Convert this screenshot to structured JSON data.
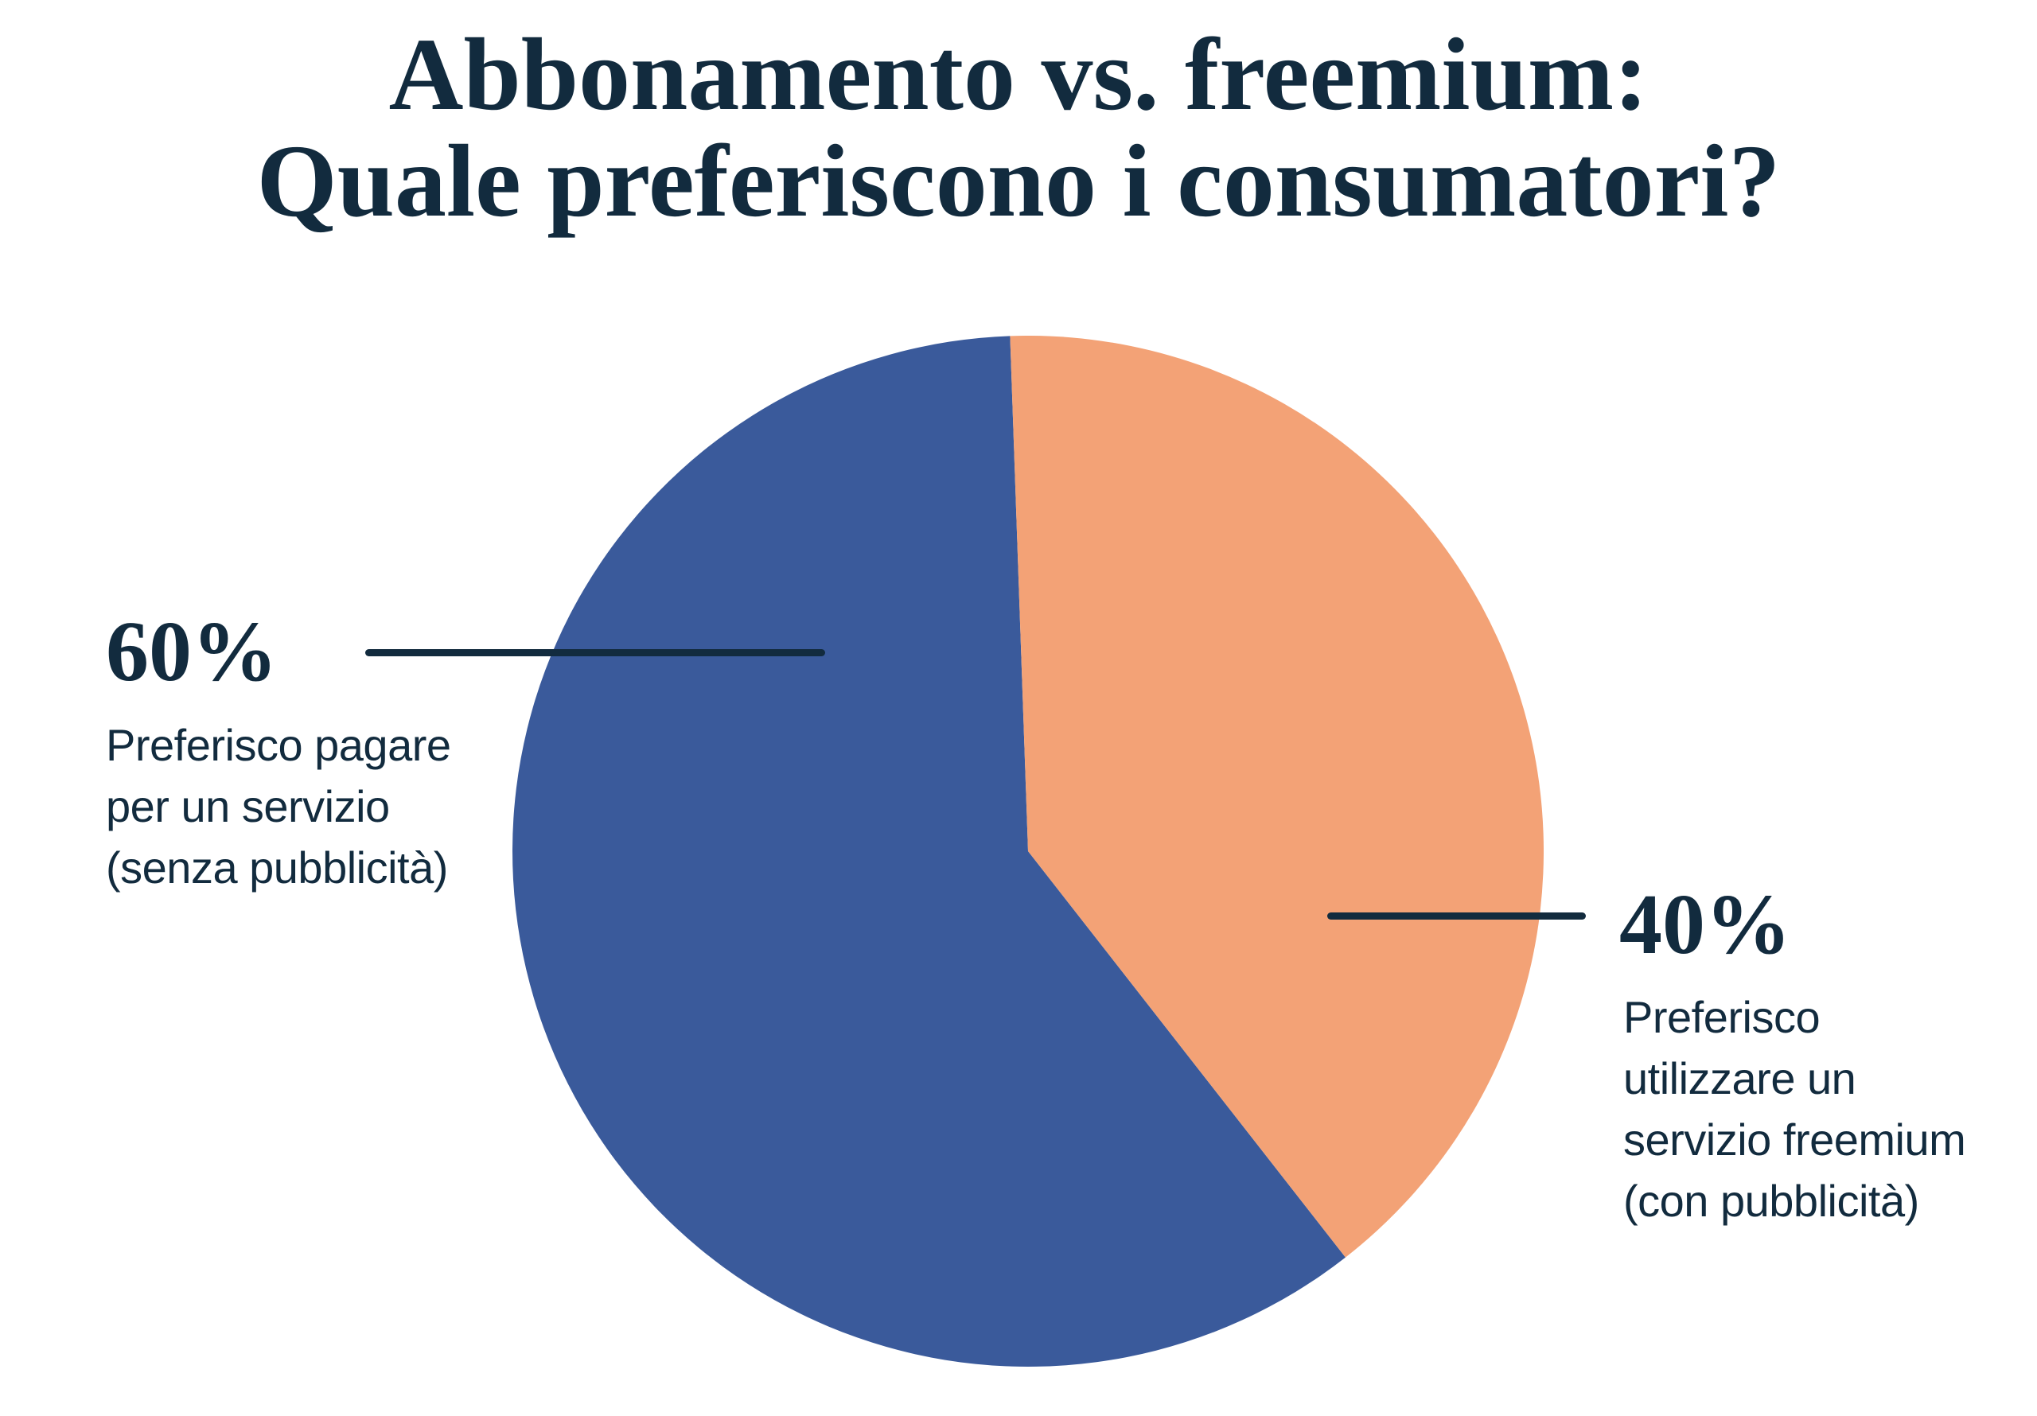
{
  "title": {
    "line1": "Abbonamento vs. freemium:",
    "line2": "Quale preferiscono i consumatori?"
  },
  "chart_data": {
    "type": "pie",
    "title": "Abbonamento vs. freemium: Quale preferiscono i consumatori?",
    "start_angle_deg": 142,
    "direction": "clockwise",
    "legend_position": "callout-labels",
    "unit": "%",
    "slices": [
      {
        "name": "pie-slice-subscription-60pct",
        "label": "Preferisco pagare per un servizio (senza pubblicità)",
        "value_pct": 60,
        "color": "#3A5A9B"
      },
      {
        "name": "pie-slice-freemium-40pct",
        "label": "Preferisco utilizzare un servizio freemium (con pubblicità)",
        "value_pct": 40,
        "color": "#F3A276"
      }
    ]
  },
  "callouts": {
    "left": {
      "pct": "60%",
      "lines": [
        "Preferisco pagare",
        "per un servizio",
        "(senza pubblicità)"
      ]
    },
    "right": {
      "pct": "40%",
      "lines": [
        "Preferisco",
        "utilizzare un",
        "servizio freemium",
        "(con pubblicità)"
      ]
    }
  },
  "colors": {
    "text_navy": "#122B3E",
    "blue": "#3A5A9B",
    "orange": "#F3A276",
    "background": "#FFFFFF"
  }
}
